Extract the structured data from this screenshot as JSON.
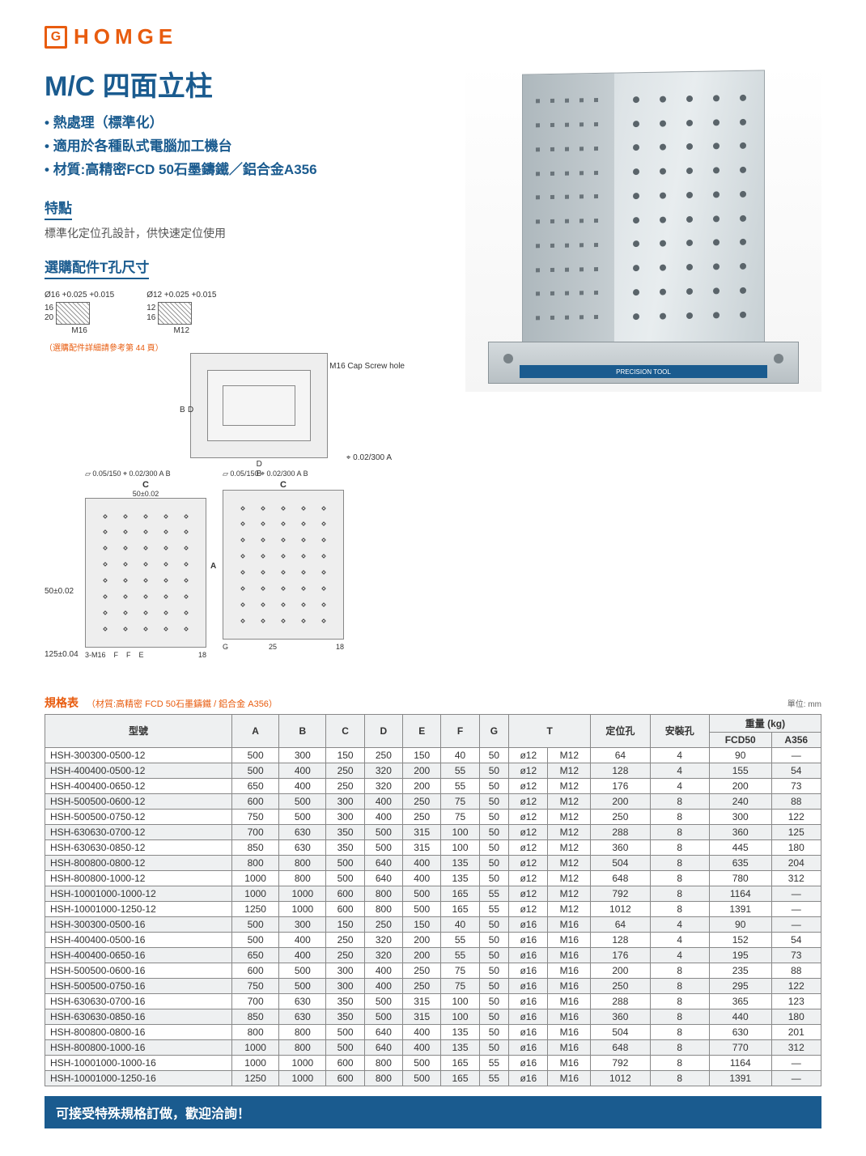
{
  "logo": {
    "icon_letter": "G",
    "text": "HOMGE"
  },
  "title": "M/C 四面立柱",
  "bullets": [
    "熱處理（標準化）",
    "適用於各種臥式電腦加工機台",
    "材質:高精密FCD 50石墨鑄鐵／鋁合金A356"
  ],
  "features": {
    "heading": "特點",
    "text": "標準化定位孔設計，供快速定位使用"
  },
  "tslot": {
    "heading": "選購配件T孔尺寸",
    "left": {
      "top": "Ø16 +0.025 +0.015",
      "a": "16",
      "b": "20",
      "label": "M16"
    },
    "right": {
      "top": "Ø12 +0.025 +0.015",
      "a": "12",
      "b": "16",
      "label": "M12"
    },
    "note": "（選購配件詳細請參考第 44 頁）"
  },
  "diagrams": {
    "top_view": {
      "labels": [
        "B",
        "D",
        "D",
        "B"
      ],
      "callout": "M16 Cap Screw hole",
      "tol": "⌖ 0.02/300  A"
    },
    "elev_left": {
      "top_tol": "▱ 0.05/150  ⌖ 0.02/300  A B",
      "c": "C",
      "c_val": "50±0.02",
      "pitch": "50±0.02",
      "base": "125±0.04",
      "bolts": "3-M16",
      "f": "F",
      "e": "E",
      "t18": "18"
    },
    "elev_right": {
      "top_tol": "▱ 0.05/150  ⌖ 0.02/300  A B",
      "c": "C",
      "a": "A",
      "g": "G",
      "t18": "18",
      "b25": "25"
    }
  },
  "product_label": "PRECISION TOOL",
  "spec": {
    "title": "規格表",
    "subtitle": "（材質:高精密 FCD 50石墨鑄鐵 / 鋁合金 A356）",
    "unit": "單位: mm",
    "columns": [
      "型號",
      "A",
      "B",
      "C",
      "D",
      "E",
      "F",
      "G",
      "T",
      "",
      "定位孔",
      "安裝孔",
      "重量 (kg)",
      ""
    ],
    "subcols_t": [
      "",
      ""
    ],
    "subcols_w": [
      "FCD50",
      "A356"
    ],
    "rows": [
      [
        "HSH-300300-0500-12",
        500,
        300,
        150,
        250,
        150,
        40,
        50,
        "ø12",
        "M12",
        64,
        4,
        90,
        "—"
      ],
      [
        "HSH-400400-0500-12",
        500,
        400,
        250,
        320,
        200,
        55,
        50,
        "ø12",
        "M12",
        128,
        4,
        155,
        54
      ],
      [
        "HSH-400400-0650-12",
        650,
        400,
        250,
        320,
        200,
        55,
        50,
        "ø12",
        "M12",
        176,
        4,
        200,
        73
      ],
      [
        "HSH-500500-0600-12",
        600,
        500,
        300,
        400,
        250,
        75,
        50,
        "ø12",
        "M12",
        200,
        8,
        240,
        88
      ],
      [
        "HSH-500500-0750-12",
        750,
        500,
        300,
        400,
        250,
        75,
        50,
        "ø12",
        "M12",
        250,
        8,
        300,
        122
      ],
      [
        "HSH-630630-0700-12",
        700,
        630,
        350,
        500,
        315,
        100,
        50,
        "ø12",
        "M12",
        288,
        8,
        360,
        125
      ],
      [
        "HSH-630630-0850-12",
        850,
        630,
        350,
        500,
        315,
        100,
        50,
        "ø12",
        "M12",
        360,
        8,
        445,
        180
      ],
      [
        "HSH-800800-0800-12",
        800,
        800,
        500,
        640,
        400,
        135,
        50,
        "ø12",
        "M12",
        504,
        8,
        635,
        204
      ],
      [
        "HSH-800800-1000-12",
        1000,
        800,
        500,
        640,
        400,
        135,
        50,
        "ø12",
        "M12",
        648,
        8,
        780,
        312
      ],
      [
        "HSH-10001000-1000-12",
        1000,
        1000,
        600,
        800,
        500,
        165,
        55,
        "ø12",
        "M12",
        792,
        8,
        1164,
        "—"
      ],
      [
        "HSH-10001000-1250-12",
        1250,
        1000,
        600,
        800,
        500,
        165,
        55,
        "ø12",
        "M12",
        1012,
        8,
        1391,
        "—"
      ],
      [
        "HSH-300300-0500-16",
        500,
        300,
        150,
        250,
        150,
        40,
        50,
        "ø16",
        "M16",
        64,
        4,
        90,
        "—"
      ],
      [
        "HSH-400400-0500-16",
        500,
        400,
        250,
        320,
        200,
        55,
        50,
        "ø16",
        "M16",
        128,
        4,
        152,
        54
      ],
      [
        "HSH-400400-0650-16",
        650,
        400,
        250,
        320,
        200,
        55,
        50,
        "ø16",
        "M16",
        176,
        4,
        195,
        73
      ],
      [
        "HSH-500500-0600-16",
        600,
        500,
        300,
        400,
        250,
        75,
        50,
        "ø16",
        "M16",
        200,
        8,
        235,
        88
      ],
      [
        "HSH-500500-0750-16",
        750,
        500,
        300,
        400,
        250,
        75,
        50,
        "ø16",
        "M16",
        250,
        8,
        295,
        122
      ],
      [
        "HSH-630630-0700-16",
        700,
        630,
        350,
        500,
        315,
        100,
        50,
        "ø16",
        "M16",
        288,
        8,
        365,
        123
      ],
      [
        "HSH-630630-0850-16",
        850,
        630,
        350,
        500,
        315,
        100,
        50,
        "ø16",
        "M16",
        360,
        8,
        440,
        180
      ],
      [
        "HSH-800800-0800-16",
        800,
        800,
        500,
        640,
        400,
        135,
        50,
        "ø16",
        "M16",
        504,
        8,
        630,
        201
      ],
      [
        "HSH-800800-1000-16",
        1000,
        800,
        500,
        640,
        400,
        135,
        50,
        "ø16",
        "M16",
        648,
        8,
        770,
        312
      ],
      [
        "HSH-10001000-1000-16",
        1000,
        1000,
        600,
        800,
        500,
        165,
        55,
        "ø16",
        "M16",
        792,
        8,
        1164,
        "—"
      ],
      [
        "HSH-10001000-1250-16",
        1250,
        1000,
        600,
        800,
        500,
        165,
        55,
        "ø16",
        "M16",
        1012,
        8,
        1391,
        "—"
      ]
    ]
  },
  "footer": "可接受特殊規格訂做，歡迎洽詢！"
}
